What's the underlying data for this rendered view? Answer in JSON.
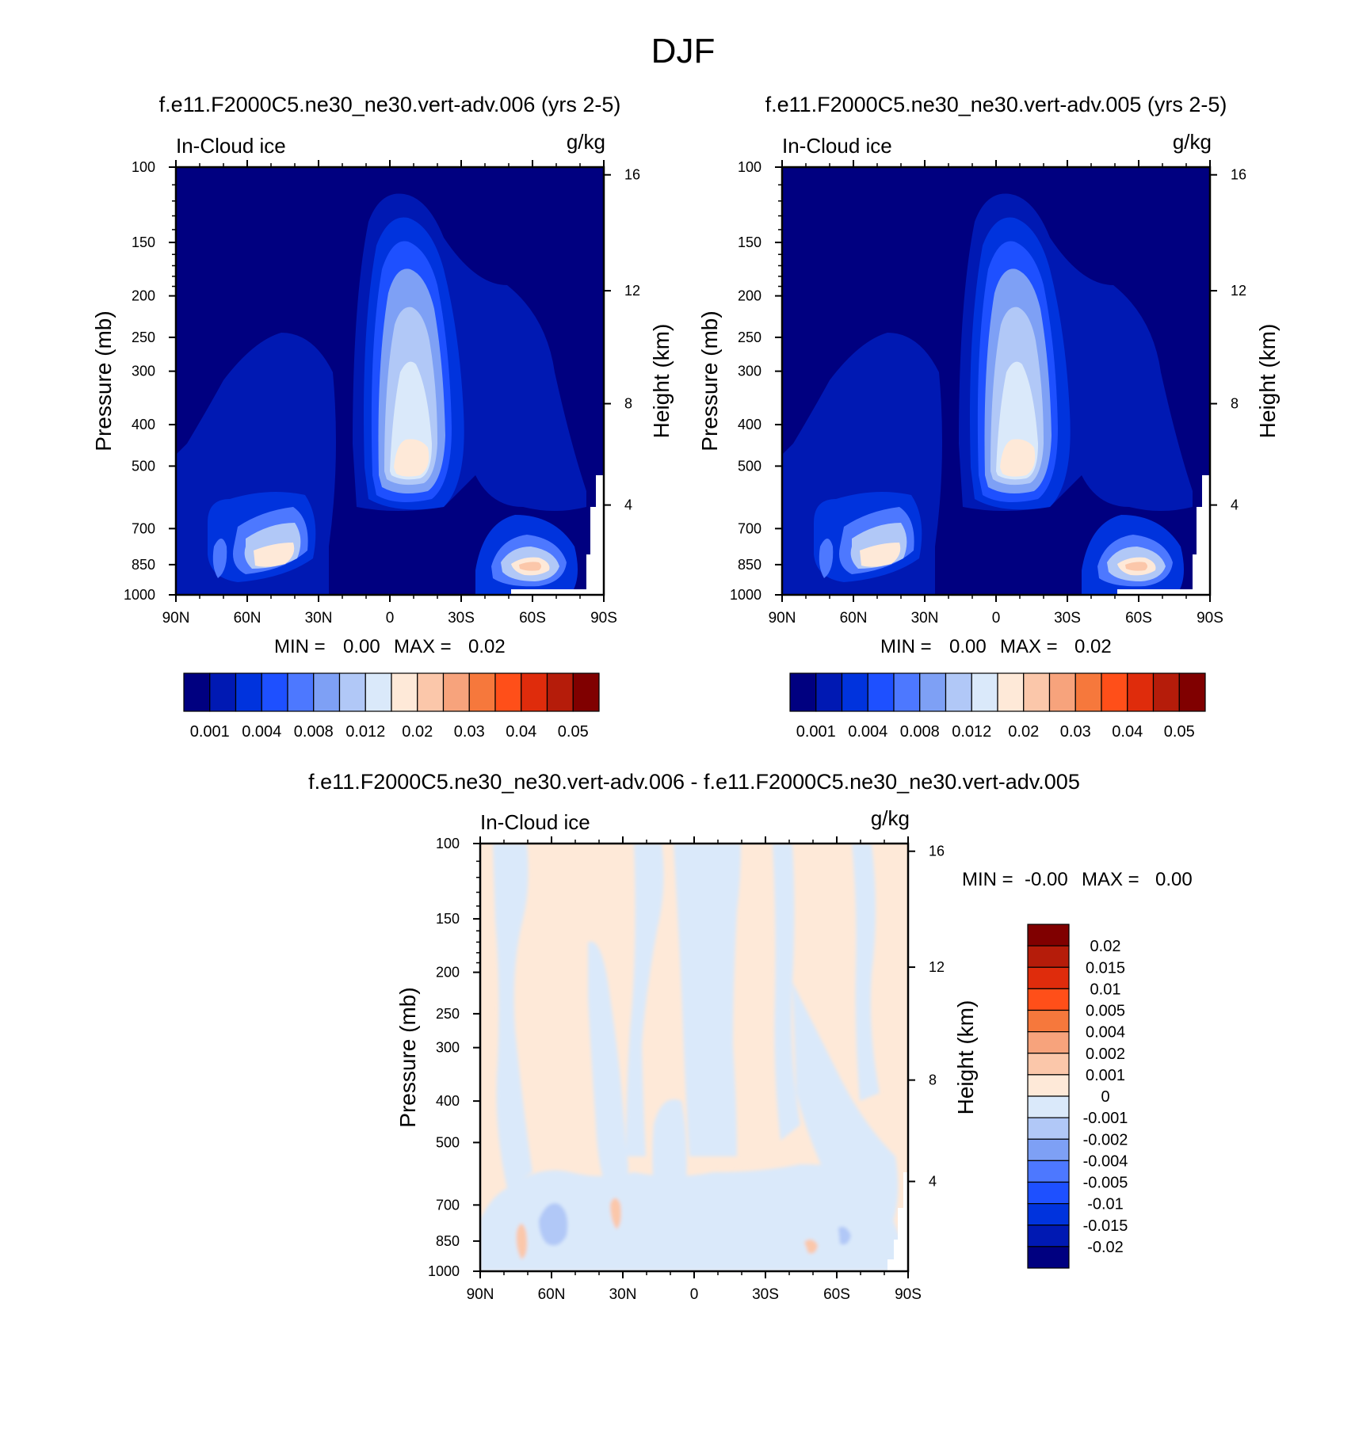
{
  "page_title": "DJF",
  "colors": {
    "positive_scale": [
      "#000080",
      "#0019b3",
      "#0033dd",
      "#1e50ff",
      "#4d78ff",
      "#7ea0f5",
      "#b1c8f7",
      "#dae9fa",
      "#fee9d8",
      "#fbc7aa",
      "#f7a37c",
      "#f6783c",
      "#ff4f19",
      "#df2c0c",
      "#b51c0a",
      "#800000"
    ],
    "diff_scale": [
      "#000080",
      "#0019b3",
      "#0033dd",
      "#1e50ff",
      "#4d78ff",
      "#7ea0f5",
      "#b1c8f7",
      "#dae9fa",
      "#fee9d8",
      "#fbc7aa",
      "#f7a37c",
      "#f6783c",
      "#ff4f19",
      "#df2c0c",
      "#b51c0a",
      "#800000"
    ]
  },
  "chart_data": [
    {
      "type": "heatmap",
      "title": "f.e11.F2000C5.ne30_ne30.vert-adv.006 (yrs 2-5)",
      "field_label": "In-Cloud ice",
      "units": "g/kg",
      "ylabel": "Pressure (mb)",
      "ylabel_right": "Height (km)",
      "x_ticks": [
        "90N",
        "60N",
        "30N",
        "0",
        "30S",
        "60S",
        "90S"
      ],
      "y_ticks": [
        "100",
        "150",
        "200",
        "250",
        "300",
        "400",
        "500",
        "700",
        "850",
        "1000"
      ],
      "y_ticks_right": [
        "16",
        "12",
        "8",
        "4"
      ],
      "ylim": [
        1000,
        100
      ],
      "stats": {
        "min_label": "MIN =",
        "min": "0.00",
        "max_label": "MAX =",
        "max": "0.02"
      },
      "colorbar_labels": [
        "0.001",
        "0.004",
        "0.008",
        "0.012",
        "0.02",
        "0.03",
        "0.04",
        "0.05"
      ],
      "features": [
        {
          "lat": 5,
          "p": 500,
          "value": 0.022
        },
        {
          "lat": 10,
          "p": 300,
          "value": 0.012
        },
        {
          "lat": -60,
          "p": 850,
          "value": 0.021
        },
        {
          "lat": 58,
          "p": 850,
          "value": 0.018
        },
        {
          "lat": 70,
          "p": 850,
          "value": 0.008
        }
      ]
    },
    {
      "type": "heatmap",
      "title": "f.e11.F2000C5.ne30_ne30.vert-adv.005 (yrs 2-5)",
      "field_label": "In-Cloud ice",
      "units": "g/kg",
      "ylabel": "Pressure (mb)",
      "ylabel_right": "Height (km)",
      "x_ticks": [
        "90N",
        "60N",
        "30N",
        "0",
        "30S",
        "60S",
        "90S"
      ],
      "y_ticks": [
        "100",
        "150",
        "200",
        "250",
        "300",
        "400",
        "500",
        "700",
        "850",
        "1000"
      ],
      "y_ticks_right": [
        "16",
        "12",
        "8",
        "4"
      ],
      "ylim": [
        1000,
        100
      ],
      "stats": {
        "min_label": "MIN =",
        "min": "0.00",
        "max_label": "MAX =",
        "max": "0.02"
      },
      "colorbar_labels": [
        "0.001",
        "0.004",
        "0.008",
        "0.012",
        "0.02",
        "0.03",
        "0.04",
        "0.05"
      ],
      "features": [
        {
          "lat": 5,
          "p": 500,
          "value": 0.021
        },
        {
          "lat": 10,
          "p": 300,
          "value": 0.012
        },
        {
          "lat": -60,
          "p": 850,
          "value": 0.021
        },
        {
          "lat": 58,
          "p": 850,
          "value": 0.018
        },
        {
          "lat": 70,
          "p": 850,
          "value": 0.008
        }
      ]
    },
    {
      "type": "heatmap",
      "title": "f.e11.F2000C5.ne30_ne30.vert-adv.006 - f.e11.F2000C5.ne30_ne30.vert-adv.005",
      "field_label": "In-Cloud ice",
      "units": "g/kg",
      "ylabel": "Pressure (mb)",
      "ylabel_right": "Height (km)",
      "x_ticks": [
        "90N",
        "60N",
        "30N",
        "0",
        "30S",
        "60S",
        "90S"
      ],
      "y_ticks": [
        "100",
        "150",
        "200",
        "250",
        "300",
        "400",
        "500",
        "700",
        "850",
        "1000"
      ],
      "y_ticks_right": [
        "16",
        "12",
        "8",
        "4"
      ],
      "ylim": [
        1000,
        100
      ],
      "stats": {
        "min_label": "MIN =",
        "min": "-0.00",
        "max_label": "MAX =",
        "max": "0.00"
      },
      "colorbar_labels": [
        "0.02",
        "0.015",
        "0.01",
        "0.005",
        "0.004",
        "0.002",
        "0.001",
        "0",
        "-0.001",
        "-0.002",
        "-0.004",
        "-0.005",
        "-0.01",
        "-0.015",
        "-0.02"
      ],
      "features": [
        {
          "lat": 70,
          "p": 800,
          "value": 0.0015
        },
        {
          "lat": 30,
          "p": 750,
          "value": 0.0015
        },
        {
          "lat": 55,
          "p": 750,
          "value": -0.0015
        },
        {
          "lat": -45,
          "p": 850,
          "value": 0.0012
        },
        {
          "lat": -60,
          "p": 880,
          "value": -0.0012
        }
      ]
    }
  ]
}
